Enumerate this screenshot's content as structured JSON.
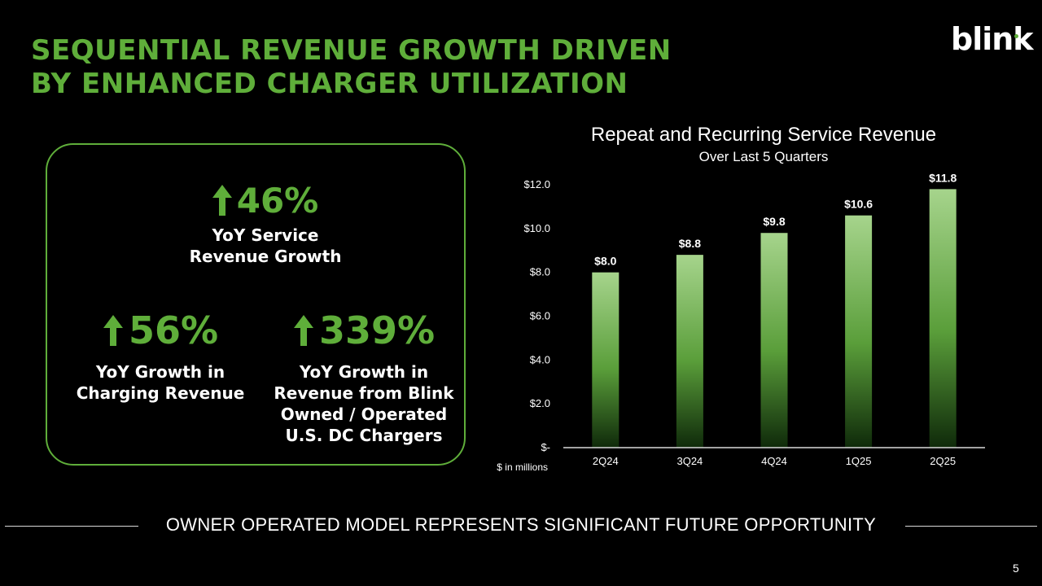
{
  "slide": {
    "title_line1": "SEQUENTIAL REVENUE GROWTH DRIVEN",
    "title_line2": "BY ENHANCED CHARGER UTILIZATION",
    "logo_text": "blink",
    "footer": "OWNER OPERATED MODEL REPRESENTS SIGNIFICANT FUTURE OPPORTUNITY",
    "page_number": "5"
  },
  "kpis": {
    "service": {
      "value": "46%",
      "label_line1": "YoY Service",
      "label_line2": "Revenue Growth",
      "icon": "up-arrow-icon"
    },
    "charging": {
      "value": "56%",
      "label_line1": "YoY Growth in",
      "label_line2": "Charging Revenue",
      "icon": "up-arrow-icon"
    },
    "dc": {
      "value": "339%",
      "label_line1": "YoY Growth in",
      "label_line2": "Revenue from Blink",
      "label_line3": "Owned / Operated",
      "label_line4": "U.S. DC Chargers",
      "icon": "up-arrow-icon"
    }
  },
  "colors": {
    "accent": "#5fae3a",
    "bar_top": "#a6d48c",
    "bar_bottom": "#0f2a0a",
    "background": "#000000"
  },
  "chart_data": {
    "type": "bar",
    "title": "Repeat and Recurring Service Revenue",
    "subtitle": "Over Last 5 Quarters",
    "categories": [
      "2Q24",
      "3Q24",
      "4Q24",
      "1Q25",
      "2Q25"
    ],
    "values": [
      8.0,
      8.8,
      9.8,
      10.6,
      11.8
    ],
    "data_labels": [
      "$8.0",
      "$8.8",
      "$9.8",
      "$10.6",
      "$11.8"
    ],
    "y_ticks": [
      0,
      2,
      4,
      6,
      8,
      10,
      12
    ],
    "y_tick_labels": [
      "$-",
      "$2.0",
      "$4.0",
      "$6.0",
      "$8.0",
      "$10.0",
      "$12.0"
    ],
    "ylim": [
      0,
      12
    ],
    "ylabel": "$ in millions",
    "xlabel": "",
    "grid": false
  }
}
